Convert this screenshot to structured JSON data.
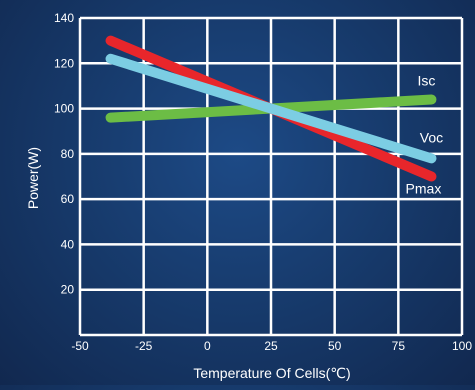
{
  "chart_data": {
    "type": "line",
    "xlabel": "Temperature Of Cells(℃)",
    "ylabel": "Power(W)",
    "xlim": [
      -50,
      100
    ],
    "ylim": [
      0,
      140
    ],
    "x_ticks": [
      -50,
      -25,
      0,
      25,
      50,
      75,
      100
    ],
    "y_ticks": [
      20,
      40,
      60,
      80,
      100,
      120,
      140
    ],
    "grid": true,
    "series": [
      {
        "name": "Pmax",
        "color": "#e8262b",
        "x": [
          -38,
          88
        ],
        "y": [
          130,
          70
        ]
      },
      {
        "name": "Voc",
        "color": "#7ccde3",
        "x": [
          -38,
          88
        ],
        "y": [
          122,
          78
        ]
      },
      {
        "name": "Isc",
        "color": "#6cbd45",
        "x": [
          -38,
          88
        ],
        "y": [
          96,
          104
        ]
      }
    ]
  }
}
